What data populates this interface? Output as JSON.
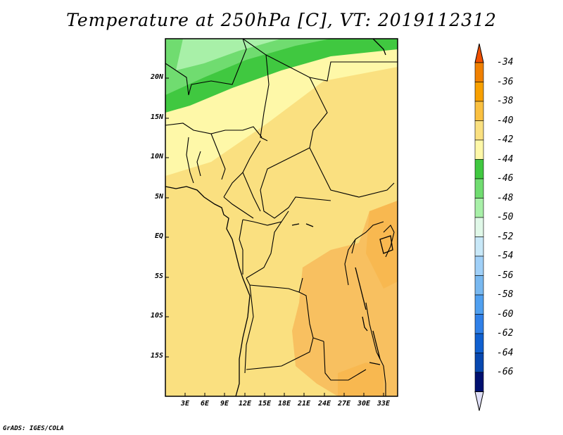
{
  "title": "Temperature at 250hPa [C], VT: 2019112312",
  "credit": "GrADS: IGES/COLA",
  "map": {
    "variable": "Temperature at 250hPa",
    "units": "C",
    "valid_time": "2019112312",
    "lat_labels": [
      "20N",
      "15N",
      "10N",
      "5N",
      "EQ",
      "5S",
      "10S",
      "15S"
    ],
    "lon_labels": [
      "3E",
      "6E",
      "9E",
      "12E",
      "15E",
      "18E",
      "21E",
      "24E",
      "27E",
      "30E",
      "33E"
    ]
  },
  "colorbar": {
    "labels": [
      "-34",
      "-36",
      "-38",
      "-40",
      "-42",
      "-44",
      "-46",
      "-48",
      "-50",
      "-52",
      "-54",
      "-56",
      "-58",
      "-60",
      "-62",
      "-64",
      "-66"
    ],
    "colors": [
      "#f05000",
      "#f08000",
      "#f8a000",
      "#fac040",
      "#fae080",
      "#fef8a8",
      "#40c840",
      "#70dc70",
      "#a8f0a8",
      "#e0f8e8",
      "#c8e8f8",
      "#a0d0f8",
      "#78b8f0",
      "#50a0f0",
      "#3080e8",
      "#1060d0",
      "#0848b0",
      "#001070",
      "#e0e0f8"
    ]
  }
}
